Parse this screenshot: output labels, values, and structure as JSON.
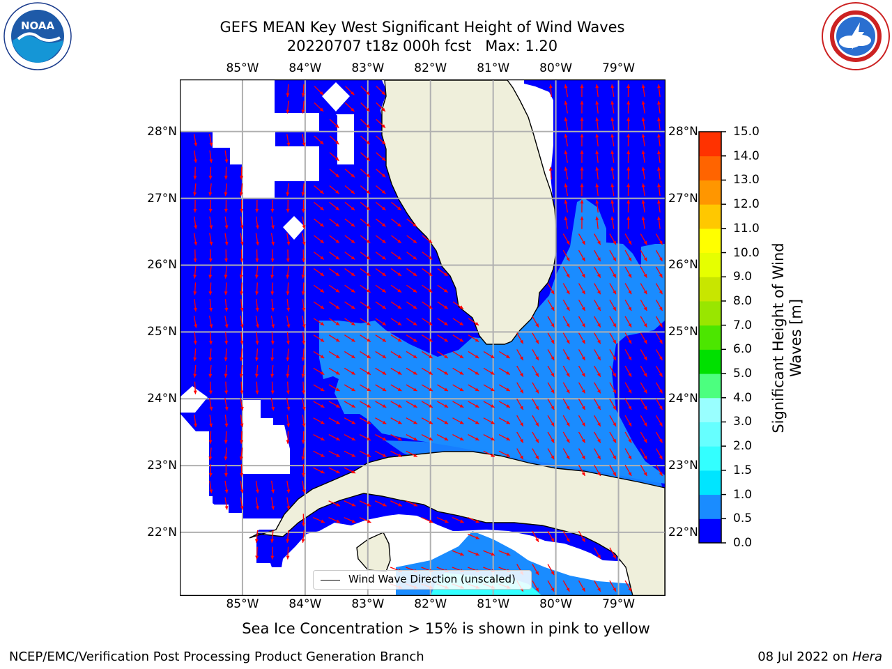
{
  "title": {
    "line1": "GEFS MEAN Key West Significant Height of Wind Waves",
    "line2": "20220707 t18z 000h fcst   Max: 1.20"
  },
  "axes": {
    "lon_labels": [
      "85°W",
      "84°W",
      "83°W",
      "82°W",
      "81°W",
      "80°W",
      "79°W"
    ],
    "lat_labels": [
      "28°N",
      "27°N",
      "26°N",
      "25°N",
      "24°N",
      "23°N",
      "22°N"
    ],
    "lon_values": [
      -85,
      -84,
      -83,
      -82,
      -81,
      -80,
      -79
    ],
    "lat_values": [
      28,
      27,
      26,
      25,
      24,
      23,
      22
    ],
    "lon_range": [
      -86,
      -78.25
    ],
    "lat_range": [
      21.05,
      28.78
    ]
  },
  "colorbar": {
    "label": "Significant Height of Wind\nWaves [m]",
    "ticks": [
      "0.0",
      "0.5",
      "1.0",
      "1.5",
      "2.0",
      "3.0",
      "4.0",
      "5.0",
      "6.0",
      "7.0",
      "8.0",
      "9.0",
      "10.0",
      "11.0",
      "12.0",
      "13.0",
      "14.0",
      "15.0"
    ],
    "colors": [
      "#0000ff",
      "#1a8cff",
      "#00e5ff",
      "#33ffff",
      "#66ffff",
      "#99ffff",
      "#4cff7f",
      "#00e000",
      "#4ce600",
      "#99e600",
      "#c8e600",
      "#e6ff00",
      "#ffff00",
      "#ffc800",
      "#ff9600",
      "#ff6400",
      "#ff3200",
      "#ff0000"
    ]
  },
  "legend": {
    "label": "Wind Wave Direction (unscaled)"
  },
  "colors": {
    "land": "#efefdb",
    "wave_low": "#0000ff",
    "wave_mid": "#1a8cff",
    "wave_high": "#33ffff",
    "arrow": "#ff0000",
    "grid": "#b0b0b0"
  },
  "logos": {
    "left": {
      "text": "NOAA",
      "icon": "noaa-logo-icon"
    },
    "right": {
      "icon": "national-weather-service-logo-icon"
    }
  },
  "note": "Sea Ice Concentration > 15% is shown in pink to yellow",
  "footer": {
    "left": "NCEP/EMC/Verification Post Processing Product Generation Branch",
    "right_date": "08 Jul 2022 on ",
    "right_host": "Hera"
  }
}
